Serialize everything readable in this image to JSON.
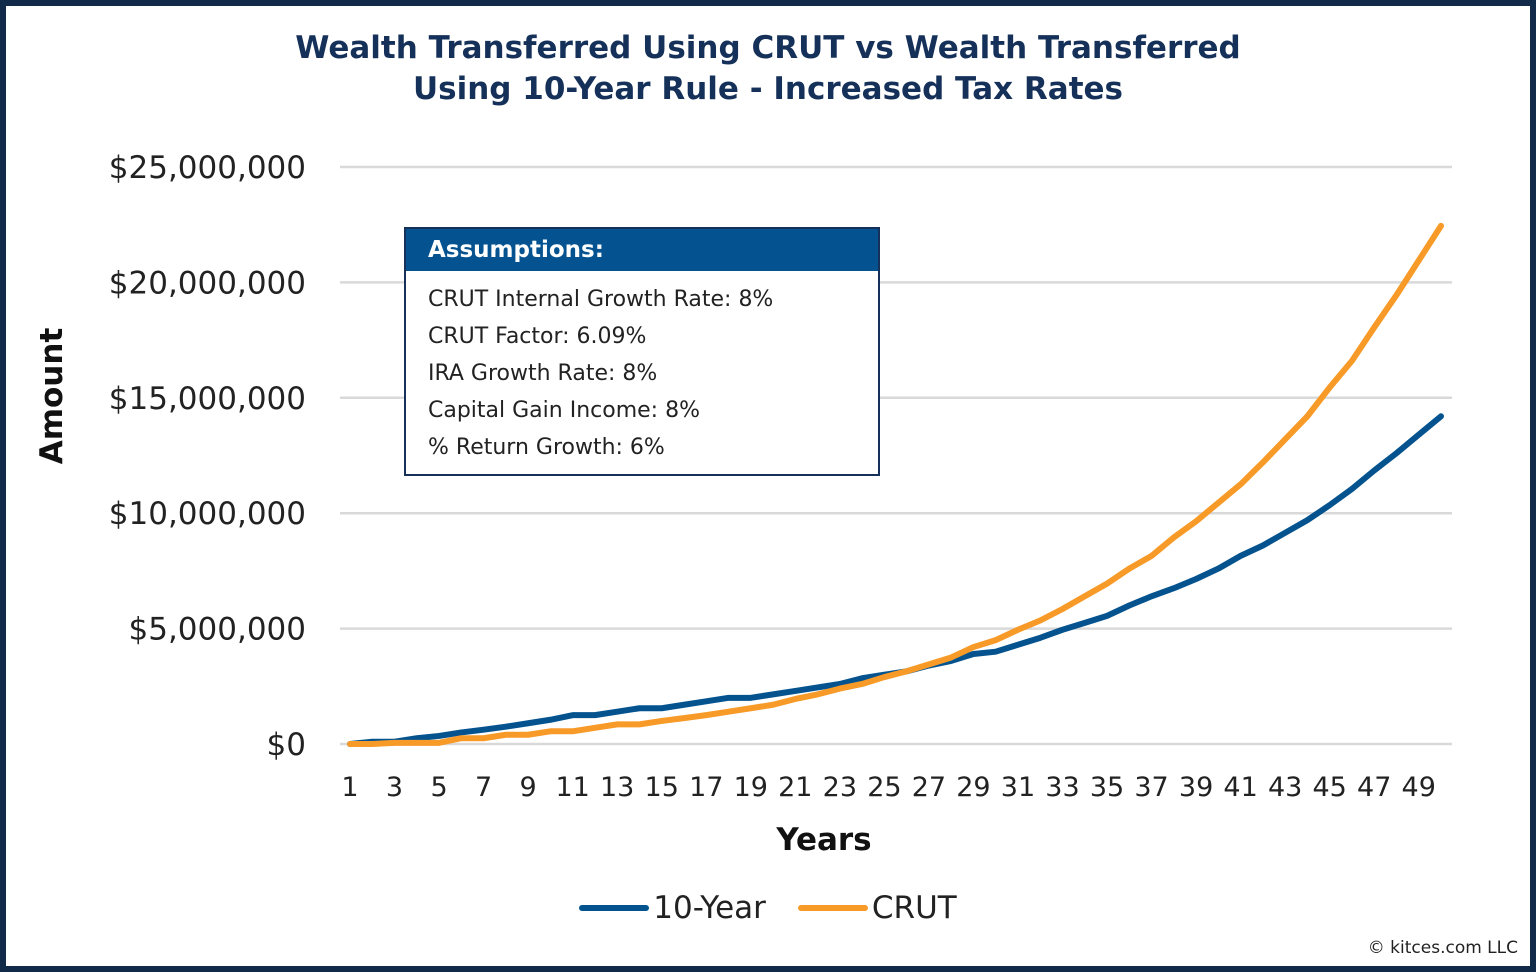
{
  "chart_data": {
    "type": "line",
    "title": "Wealth Transferred Using CRUT vs Wealth Transferred Using 10-Year Rule - Increased Tax Rates",
    "title_lines": [
      "Wealth Transferred Using CRUT vs Wealth Transferred",
      "Using 10-Year Rule - Increased Tax Rates"
    ],
    "xlabel": "Years",
    "ylabel": "Amount",
    "ylim": [
      0,
      25000000
    ],
    "yticks": [
      0,
      5000000,
      10000000,
      15000000,
      20000000,
      25000000
    ],
    "ytick_labels": [
      "$0",
      "$5,000,000",
      "$10,000,000",
      "$15,000,000",
      "$20,000,000",
      "$25,000,000"
    ],
    "x": [
      1,
      2,
      3,
      4,
      5,
      6,
      7,
      8,
      9,
      10,
      11,
      12,
      13,
      14,
      15,
      16,
      17,
      18,
      19,
      20,
      21,
      22,
      23,
      24,
      25,
      26,
      27,
      28,
      29,
      30,
      31,
      32,
      33,
      34,
      35,
      36,
      37,
      38,
      39,
      40,
      41,
      42,
      43,
      44,
      45,
      46,
      47,
      48,
      49,
      50
    ],
    "xtick_labels": [
      "1",
      "3",
      "5",
      "7",
      "9",
      "11",
      "13",
      "15",
      "17",
      "19",
      "21",
      "23",
      "25",
      "27",
      "29",
      "31",
      "33",
      "35",
      "37",
      "39",
      "41",
      "43",
      "45",
      "47",
      "49"
    ],
    "grid": true,
    "legend_position": "bottom",
    "series": [
      {
        "name": "10-Year",
        "color": "#04538f",
        "values": [
          0,
          100000,
          100000,
          250000,
          350000,
          500000,
          620000,
          750000,
          900000,
          1050000,
          1250000,
          1250000,
          1400000,
          1550000,
          1550000,
          1700000,
          1850000,
          2000000,
          2000000,
          2150000,
          2300000,
          2450000,
          2600000,
          2850000,
          3000000,
          3150000,
          3400000,
          3600000,
          3900000,
          4000000,
          4300000,
          4600000,
          4950000,
          5250000,
          5550000,
          6000000,
          6400000,
          6750000,
          7150000,
          7600000,
          8150000,
          8600000,
          9150000,
          9700000,
          10350000,
          11050000,
          11850000,
          12600000,
          13400000,
          14200000
        ]
      },
      {
        "name": "CRUT",
        "color": "#f79a28",
        "values": [
          0,
          0,
          50000,
          50000,
          50000,
          250000,
          250000,
          400000,
          400000,
          550000,
          550000,
          700000,
          850000,
          850000,
          1000000,
          1120000,
          1250000,
          1400000,
          1550000,
          1700000,
          1950000,
          2150000,
          2400000,
          2600000,
          2900000,
          3150000,
          3450000,
          3750000,
          4200000,
          4500000,
          4950000,
          5350000,
          5850000,
          6400000,
          6950000,
          7600000,
          8150000,
          8950000,
          9650000,
          10450000,
          11250000,
          12200000,
          13200000,
          14200000,
          15450000,
          16600000,
          18050000,
          19450000,
          20950000,
          22450000
        ]
      }
    ]
  },
  "assumptions": {
    "heading": "Assumptions:",
    "lines": [
      "CRUT Internal Growth Rate: 8%",
      "CRUT Factor: 6.09%",
      "IRA Growth Rate: 8%",
      "Capital Gain Income: 8%",
      "% Return Growth: 6%"
    ]
  },
  "credit": "© kitces.com LLC"
}
